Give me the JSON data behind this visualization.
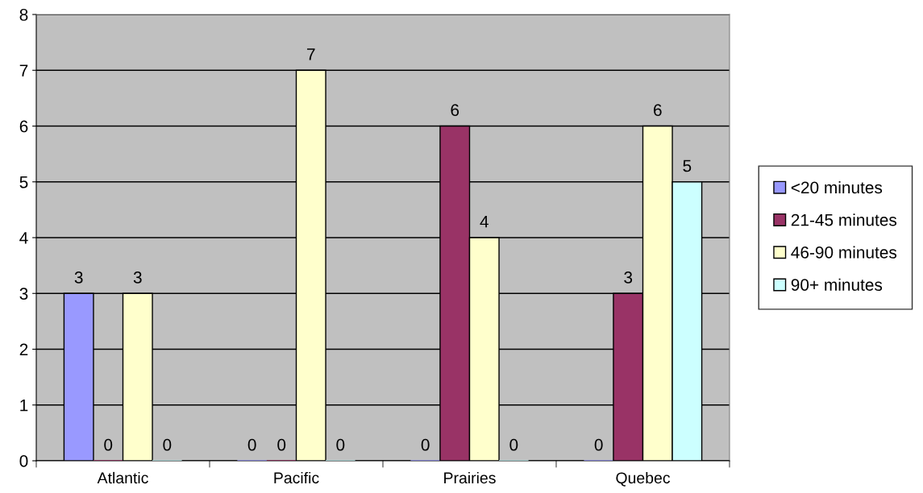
{
  "chart_data": {
    "type": "bar",
    "categories": [
      "Atlantic",
      "Pacific",
      "Prairies",
      "Quebec"
    ],
    "series": [
      {
        "name": "<20 minutes",
        "color": "#9999ff",
        "values": [
          3,
          0,
          0,
          0
        ]
      },
      {
        "name": "21-45 minutes",
        "color": "#993366",
        "values": [
          0,
          0,
          6,
          3
        ]
      },
      {
        "name": "46-90 minutes",
        "color": "#ffffcc",
        "values": [
          3,
          7,
          4,
          6
        ]
      },
      {
        "name": "90+ minutes",
        "color": "#ccffff",
        "values": [
          0,
          0,
          0,
          5
        ]
      }
    ],
    "ylim": [
      0,
      8
    ],
    "yticks": [
      0,
      1,
      2,
      3,
      4,
      5,
      6,
      7,
      8
    ],
    "grid": "y",
    "legend": "right",
    "data_labels": true
  }
}
